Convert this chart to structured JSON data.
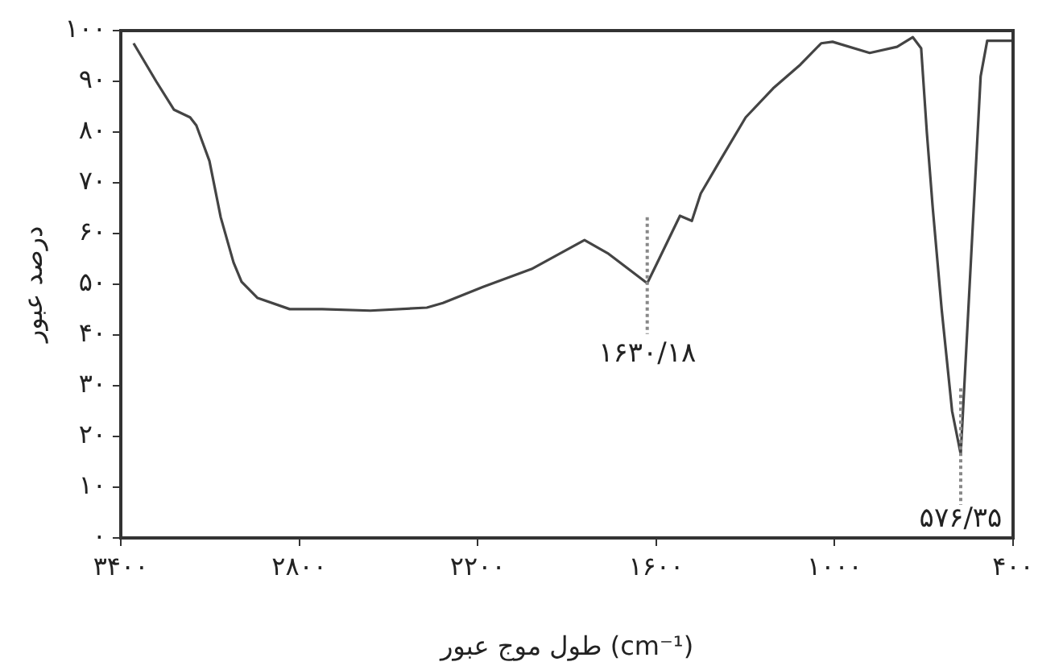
{
  "chart_data": {
    "type": "line",
    "ylabel": "درصد عبور",
    "xlabel": "طول موج عبور (cm⁻¹)",
    "xlim": [
      3400,
      400
    ],
    "xticks": [
      {
        "value": 3400,
        "label": "۳۴۰۰"
      },
      {
        "value": 2800,
        "label": "۲۸۰۰"
      },
      {
        "value": 2200,
        "label": "۲۲۰۰"
      },
      {
        "value": 1600,
        "label": "۱۶۰۰"
      },
      {
        "value": 1000,
        "label": "۱۰۰۰"
      },
      {
        "value": 400,
        "label": "۴۰۰"
      }
    ],
    "ylim": [
      0,
      100
    ],
    "yticks": [
      {
        "value": 0,
        "label": "۰"
      },
      {
        "value": 10,
        "label": "۱۰"
      },
      {
        "value": 20,
        "label": "۲۰"
      },
      {
        "value": 30,
        "label": "۳۰"
      },
      {
        "value": 40,
        "label": "۴۰"
      },
      {
        "value": 50,
        "label": "۵۰"
      },
      {
        "value": 60,
        "label": "۶۰"
      },
      {
        "value": 70,
        "label": "۷۰"
      },
      {
        "value": 80,
        "label": "۸۰"
      },
      {
        "value": 90,
        "label": "۹۰"
      },
      {
        "value": 100,
        "label": "۱۰۰"
      }
    ],
    "grid": false,
    "legend": false,
    "marker": "none",
    "line_style": "solid",
    "series": [
      {
        "color": "#444444",
        "x": [
          3357,
          3281,
          3221,
          3167,
          3146,
          3102,
          3064,
          3021,
          2994,
          2940,
          2832,
          2723,
          2561,
          2371,
          2317,
          2182,
          2019,
          1841,
          1760,
          1630,
          1590,
          1520,
          1480,
          1450,
          1386,
          1299,
          1207,
          1115,
          1045,
          1007,
          882,
          790,
          737,
          709,
          690,
          670,
          640,
          605,
          576,
          509,
          487,
          420,
          400
        ],
        "values": [
          97.5,
          90,
          84.4,
          82.9,
          81.3,
          74.3,
          63.2,
          54.3,
          50.5,
          47.3,
          45.1,
          45.1,
          44.8,
          45.4,
          46.3,
          49.5,
          53,
          58.7,
          56,
          50.2,
          55,
          63.5,
          62.5,
          67.9,
          74.3,
          82.9,
          88.6,
          93.3,
          97.5,
          97.8,
          95.6,
          96.8,
          98.7,
          96.5,
          80,
          65,
          45,
          25,
          16.5,
          91,
          98,
          98,
          98
        ]
      }
    ],
    "annotations": [
      {
        "text": "۱۶۳۰/۱۸",
        "x": 1630,
        "y": 50.2
      },
      {
        "text": "۵۷۶/۳۵",
        "x": 576,
        "y": 16.5
      }
    ]
  }
}
